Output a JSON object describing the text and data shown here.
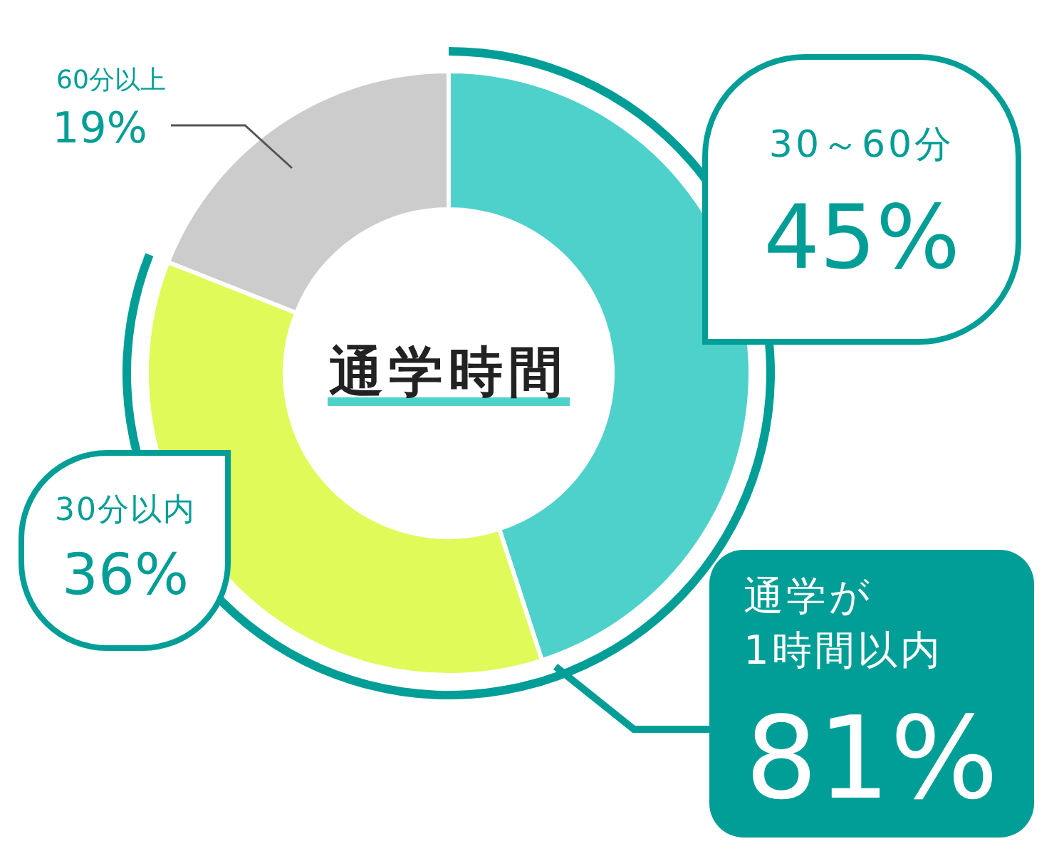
{
  "chart_data": {
    "type": "donut",
    "title": "通学時間",
    "categories": [
      "30～60分",
      "30分以内",
      "60分以上"
    ],
    "values": [
      45,
      36,
      19
    ],
    "colors": [
      "#4fd1cb",
      "#e0fa5a",
      "#cccccc"
    ],
    "value_labels": [
      "45%",
      "36%",
      "19%"
    ],
    "annotations": [
      "通学が\n1時間以内\n81%"
    ]
  }
}
